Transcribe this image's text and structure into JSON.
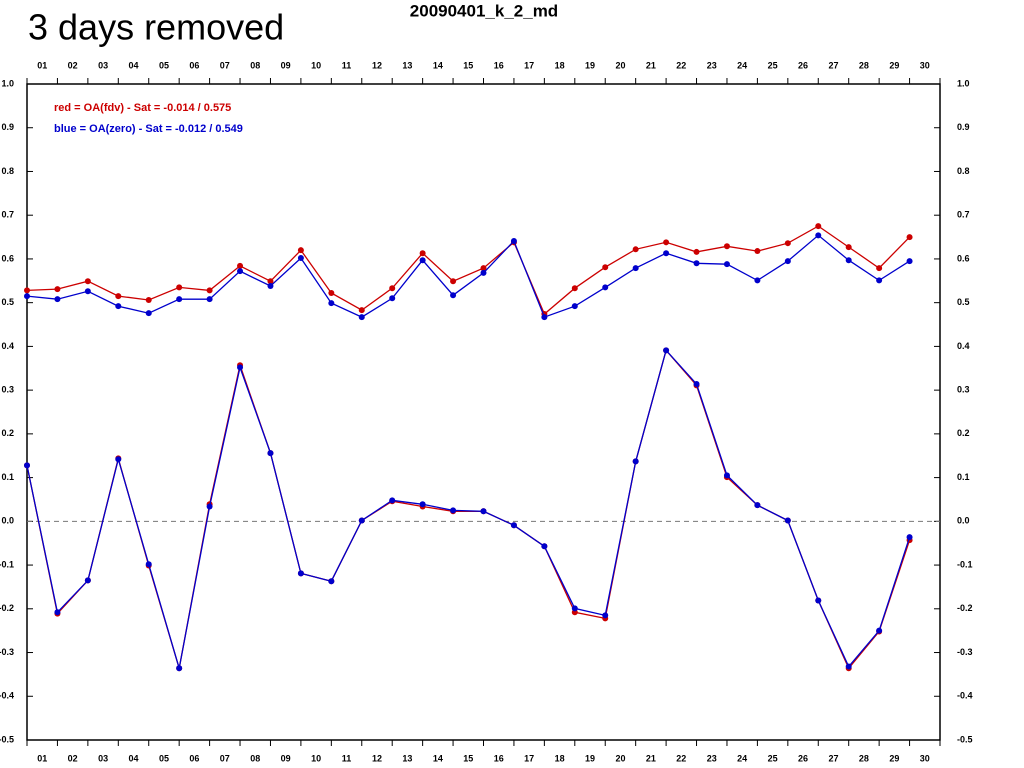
{
  "chart_data": {
    "type": "line",
    "title": "20090401_k_2_md",
    "annotation": "3 days removed",
    "categories": [
      "01",
      "02",
      "03",
      "04",
      "05",
      "06",
      "07",
      "08",
      "09",
      "10",
      "11",
      "12",
      "13",
      "14",
      "15",
      "16",
      "17",
      "18",
      "19",
      "20",
      "21",
      "22",
      "23",
      "24",
      "25",
      "26",
      "27",
      "28",
      "29",
      "30"
    ],
    "series": [
      {
        "name": "red = OA(fdv) - Sat = -0.014 / 0.575",
        "color": "#cc0000",
        "values": [
          0.528,
          0.531,
          0.549,
          0.515,
          0.506,
          0.535,
          0.528,
          0.584,
          0.549,
          0.62,
          0.522,
          0.483,
          0.533,
          0.613,
          0.549,
          0.579,
          0.638,
          0.474,
          0.533,
          0.581,
          0.622,
          0.638,
          0.616,
          0.629,
          0.618,
          0.636,
          0.675,
          0.627,
          0.579,
          0.65
        ]
      },
      {
        "name": "blue = OA(zero) - Sat = -0.012 / 0.549",
        "color": "#0000cc",
        "values": [
          0.515,
          0.508,
          0.526,
          0.492,
          0.476,
          0.508,
          0.508,
          0.572,
          0.538,
          0.602,
          0.499,
          0.467,
          0.51,
          0.597,
          0.517,
          0.568,
          0.641,
          0.467,
          0.492,
          0.535,
          0.579,
          0.613,
          0.59,
          0.588,
          0.551,
          0.595,
          0.654,
          0.597,
          0.551,
          0.595
        ]
      },
      {
        "color": "#cc0000",
        "values": [
          0.128,
          -0.211,
          -0.135,
          0.144,
          -0.101,
          -0.336,
          0.039,
          0.357,
          0.156,
          -0.119,
          -0.137,
          0.002,
          0.046,
          0.034,
          0.023,
          0.023,
          -0.009,
          -0.057,
          -0.208,
          -0.222,
          0.137,
          0.391,
          0.311,
          0.101,
          0.037,
          0.002,
          -0.181,
          -0.336,
          -0.252,
          -0.043
        ]
      },
      {
        "color": "#0000cc",
        "values": [
          0.128,
          -0.208,
          -0.135,
          0.142,
          -0.098,
          -0.336,
          0.034,
          0.352,
          0.156,
          -0.119,
          -0.137,
          0.002,
          0.048,
          0.039,
          0.025,
          0.023,
          -0.009,
          -0.057,
          -0.199,
          -0.215,
          0.137,
          0.391,
          0.314,
          0.105,
          0.037,
          0.002,
          -0.181,
          -0.332,
          -0.25,
          -0.036
        ]
      }
    ],
    "ylim": [
      -0.5,
      1.0
    ],
    "yticks": [
      {
        "value": 1.0,
        "label": "1.0"
      },
      0.9,
      0.8,
      0.7,
      0.6,
      0.5,
      0.4,
      0.3,
      0.2,
      0.1,
      {
        "value": 0.0,
        "label": "0.0"
      },
      -0.1,
      -0.2,
      -0.3,
      -0.4,
      -0.5
    ],
    "reference_line": 0
  }
}
